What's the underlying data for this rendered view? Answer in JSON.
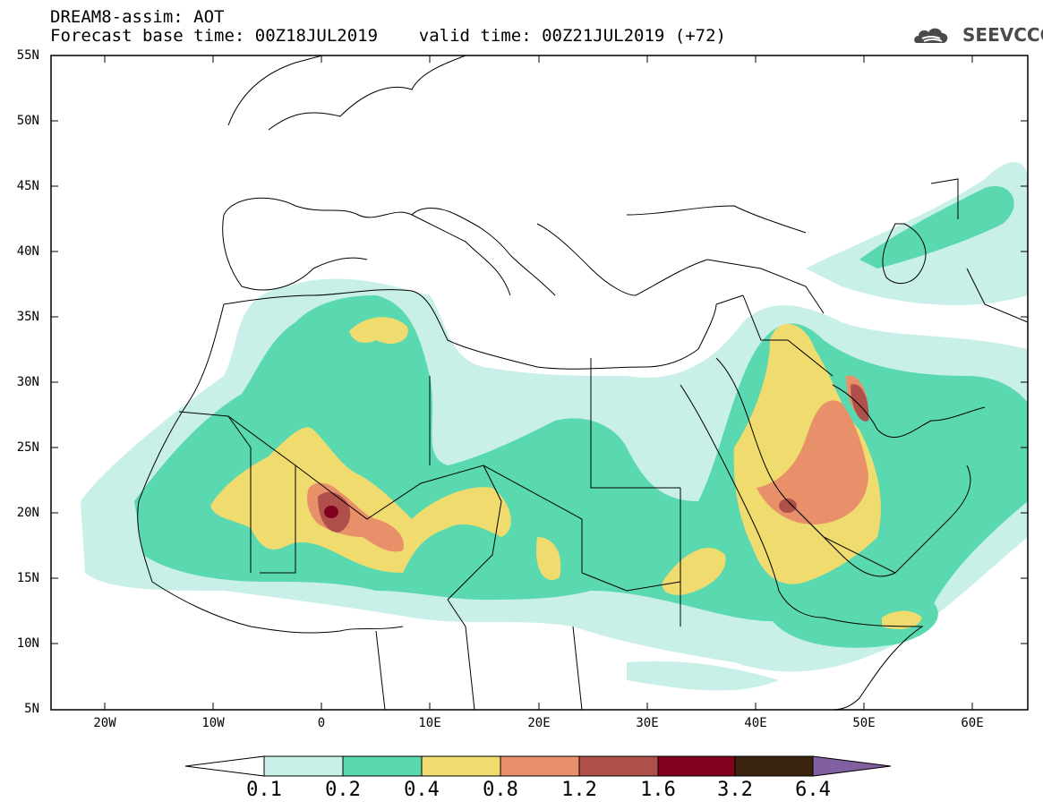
{
  "title": {
    "line1": "DREAM8-assim: AOT",
    "line2": "Forecast base time: 00Z18JUL2019    valid time: 00Z21JUL2019 (+72)"
  },
  "logo": {
    "text": "SEEVCCC",
    "icon": "cloud-icon"
  },
  "map": {
    "lat_labels": [
      "55N",
      "50N",
      "45N",
      "40N",
      "35N",
      "30N",
      "25N",
      "20N",
      "15N",
      "10N",
      "5N"
    ],
    "lon_labels": [
      "20W",
      "10W",
      "0",
      "10E",
      "20E",
      "30E",
      "40E",
      "50E",
      "60E"
    ],
    "lat_range": [
      5,
      55
    ],
    "lon_range": [
      -25,
      65
    ],
    "variable": "AOT",
    "colors": {
      "c1": "#c8f0e8",
      "c2": "#5ad8b0",
      "c3": "#f0dc6e",
      "c4": "#e8906a",
      "c5": "#b0504a",
      "c6": "#800020",
      "c7": "#3a2410",
      "c8": "#8060a0"
    }
  },
  "colorbar": {
    "levels": [
      "0.1",
      "0.2",
      "0.4",
      "0.8",
      "1.2",
      "1.6",
      "3.2",
      "6.4"
    ]
  }
}
